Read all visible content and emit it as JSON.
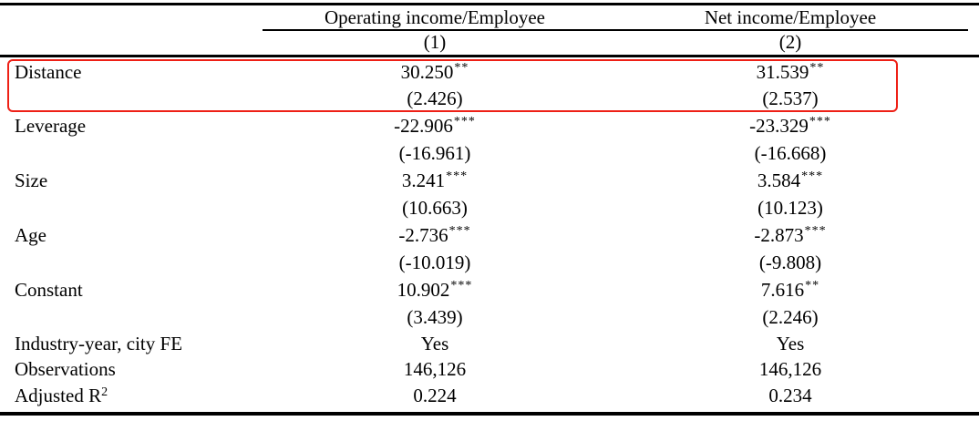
{
  "table": {
    "corner_label": "",
    "col_groups": [
      {
        "label": "Operating income/Employee",
        "number": "(1)"
      },
      {
        "label": "Net income/Employee",
        "number": "(2)"
      }
    ],
    "rows": [
      {
        "label": "Distance",
        "highlighted": true,
        "cells": [
          {
            "coef": "30.250",
            "stars": "**",
            "tstat": "(2.426)"
          },
          {
            "coef": "31.539",
            "stars": "**",
            "tstat": "(2.537)"
          }
        ]
      },
      {
        "label": "Leverage",
        "highlighted": false,
        "cells": [
          {
            "coef": "-22.906",
            "stars": "***",
            "tstat": "(-16.961)"
          },
          {
            "coef": "-23.329",
            "stars": "***",
            "tstat": "(-16.668)"
          }
        ]
      },
      {
        "label": "Size",
        "highlighted": false,
        "cells": [
          {
            "coef": "3.241",
            "stars": "***",
            "tstat": "(10.663)"
          },
          {
            "coef": "3.584",
            "stars": "***",
            "tstat": "(10.123)"
          }
        ]
      },
      {
        "label": "Age",
        "highlighted": false,
        "cells": [
          {
            "coef": "-2.736",
            "stars": "***",
            "tstat": "(-10.019)"
          },
          {
            "coef": "-2.873",
            "stars": "***",
            "tstat": "(-9.808)"
          }
        ]
      },
      {
        "label": "Constant",
        "highlighted": false,
        "cells": [
          {
            "coef": "10.902",
            "stars": "***",
            "tstat": "(3.439)"
          },
          {
            "coef": "7.616",
            "stars": "**",
            "tstat": "(2.246)"
          }
        ]
      }
    ],
    "summary_rows": [
      {
        "label": "Industry-year, city FE",
        "values": [
          "Yes",
          "Yes"
        ]
      },
      {
        "label": "Observations",
        "values": [
          "146,126",
          "146,126"
        ]
      },
      {
        "label": "Adjusted R",
        "label_sup": "2",
        "values": [
          "0.224",
          "0.234"
        ]
      }
    ],
    "highlight_color": "#ee2016"
  }
}
